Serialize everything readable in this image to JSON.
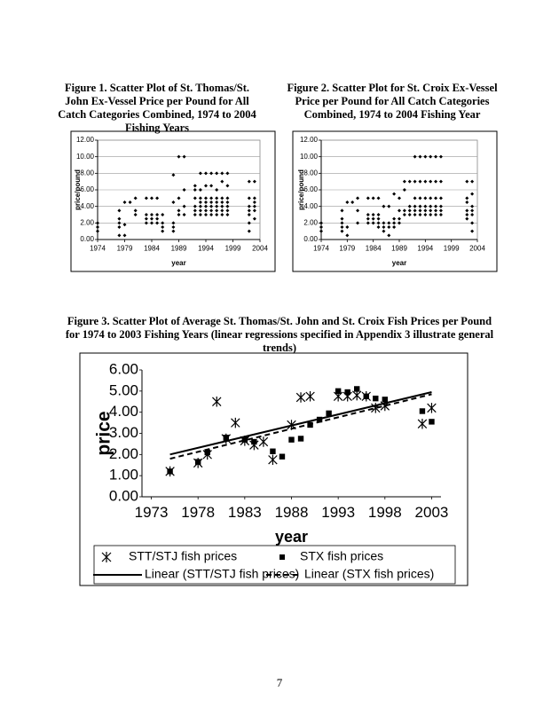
{
  "chart_data": [
    {
      "type": "scatter",
      "title": "Figure 1.  Scatter Plot of St. Thomas/St. John Ex-Vessel Price per Pound for All Catch Categories Combined, 1974 to 2004 Fishing Years",
      "x_label": "year",
      "y_label": "price/pound",
      "xlim": [
        1974,
        2004
      ],
      "xticks": [
        1974,
        1979,
        1984,
        1989,
        1994,
        1999,
        2004
      ],
      "ylim": [
        0,
        12
      ],
      "yticks": [
        {
          "value": 0,
          "label": "0.00"
        },
        {
          "value": 2,
          "label": "2.00"
        },
        {
          "value": 4,
          "label": "4.00"
        },
        {
          "value": 6,
          "label": "6.00"
        },
        {
          "value": 8,
          "label": "8.00"
        },
        {
          "value": 10,
          "label": "10.00"
        },
        {
          "value": 12,
          "label": "12.00"
        }
      ],
      "grid": true,
      "series": [
        {
          "color": "#000000",
          "marker": "diamond",
          "x": [
            1974,
            1974,
            1974,
            1978,
            1978,
            1978,
            1978,
            1978,
            1979,
            1979,
            1979,
            1980,
            1981,
            1981,
            1981,
            1983,
            1983,
            1983,
            1983,
            1984,
            1984,
            1984,
            1984,
            1985,
            1985,
            1985,
            1985,
            1986,
            1986,
            1986,
            1986,
            1988,
            1988,
            1988,
            1988,
            1988,
            1989,
            1989,
            1989,
            1989,
            1990,
            1990,
            1990,
            1990,
            1992,
            1992,
            1992,
            1992,
            1992,
            1992,
            1993,
            1993,
            1993,
            1993,
            1993,
            1993,
            1993,
            1994,
            1994,
            1994,
            1994,
            1994,
            1994,
            1994,
            1995,
            1995,
            1995,
            1995,
            1995,
            1995,
            1995,
            1996,
            1996,
            1996,
            1996,
            1996,
            1996,
            1996,
            1997,
            1997,
            1997,
            1997,
            1997,
            1997,
            1997,
            1998,
            1998,
            1998,
            1998,
            1998,
            1998,
            1998,
            2002,
            2002,
            2002,
            2002,
            2002,
            2002,
            2002,
            2003,
            2003,
            2003,
            2003,
            2003,
            2003
          ],
          "values": [
            1.0,
            1.5,
            2.0,
            0.5,
            1.5,
            2.0,
            2.5,
            3.5,
            0.5,
            1.8,
            4.5,
            4.5,
            3.0,
            3.5,
            5.0,
            2.0,
            2.5,
            3.0,
            5.0,
            2.0,
            2.5,
            3.0,
            5.0,
            2.0,
            2.5,
            3.0,
            5.0,
            1.0,
            1.5,
            2.0,
            3.0,
            1.0,
            1.5,
            2.0,
            4.5,
            7.8,
            3.0,
            3.5,
            5.0,
            10.0,
            3.0,
            4.0,
            6.0,
            10.0,
            3.0,
            3.5,
            4.0,
            5.0,
            6.0,
            6.5,
            3.0,
            3.5,
            4.0,
            4.5,
            5.0,
            6.0,
            8.0,
            3.0,
            3.5,
            4.0,
            4.5,
            5.0,
            6.5,
            8.0,
            3.0,
            3.5,
            4.0,
            4.5,
            5.0,
            6.5,
            8.0,
            3.0,
            3.5,
            4.0,
            4.5,
            5.0,
            6.0,
            8.0,
            3.0,
            3.5,
            4.0,
            4.5,
            5.0,
            7.0,
            8.0,
            3.0,
            3.5,
            4.0,
            4.5,
            5.0,
            6.5,
            8.0,
            1.0,
            2.0,
            3.0,
            3.5,
            4.0,
            5.0,
            7.0,
            2.5,
            3.5,
            4.0,
            4.5,
            5.0,
            7.0
          ]
        }
      ]
    },
    {
      "type": "scatter",
      "title": "Figure 2.  Scatter Plot for St. Croix Ex-Vessel Price per Pound for All Catch Categories Combined, 1974 to 2004 Fishing Year",
      "x_label": "year",
      "y_label": "price/pound",
      "xlim": [
        1974,
        2004
      ],
      "xticks": [
        1974,
        1979,
        1984,
        1989,
        1994,
        1999,
        2004
      ],
      "ylim": [
        0,
        12
      ],
      "yticks": [
        {
          "value": 0,
          "label": "0.00"
        },
        {
          "value": 2,
          "label": "2.00"
        },
        {
          "value": 4,
          "label": "4.00"
        },
        {
          "value": 6,
          "label": "6.00"
        },
        {
          "value": 8,
          "label": "8.00"
        },
        {
          "value": 10,
          "label": "10.00"
        },
        {
          "value": 12,
          "label": "12.00"
        }
      ],
      "grid": true,
      "series": [
        {
          "color": "#000000",
          "marker": "diamond",
          "x": [
            1974,
            1974,
            1974,
            1978,
            1978,
            1978,
            1978,
            1978,
            1979,
            1979,
            1979,
            1980,
            1981,
            1981,
            1981,
            1983,
            1983,
            1983,
            1983,
            1984,
            1984,
            1984,
            1984,
            1985,
            1985,
            1985,
            1985,
            1985,
            1986,
            1986,
            1986,
            1986,
            1987,
            1987,
            1987,
            1987,
            1988,
            1988,
            1988,
            1988,
            1989,
            1989,
            1989,
            1989,
            1990,
            1990,
            1990,
            1990,
            1991,
            1991,
            1991,
            1991,
            1992,
            1992,
            1992,
            1992,
            1992,
            1992,
            1993,
            1993,
            1993,
            1993,
            1993,
            1993,
            1994,
            1994,
            1994,
            1994,
            1994,
            1994,
            1995,
            1995,
            1995,
            1995,
            1995,
            1995,
            1996,
            1996,
            1996,
            1996,
            1996,
            1996,
            1997,
            1997,
            1997,
            1997,
            1997,
            1997,
            2002,
            2002,
            2002,
            2002,
            2002,
            2002,
            2003,
            2003,
            2003,
            2003,
            2003,
            2003,
            2003
          ],
          "values": [
            1.0,
            1.5,
            2.0,
            1.0,
            1.5,
            2.0,
            2.5,
            3.5,
            0.5,
            1.5,
            4.5,
            4.5,
            2.0,
            3.5,
            5.0,
            2.0,
            2.5,
            3.0,
            5.0,
            2.0,
            2.5,
            3.0,
            5.0,
            1.5,
            2.0,
            2.5,
            3.0,
            5.0,
            1.0,
            1.5,
            2.0,
            4.0,
            0.5,
            1.5,
            2.0,
            4.0,
            1.5,
            2.0,
            2.5,
            5.5,
            2.0,
            2.5,
            3.5,
            5.0,
            3.0,
            3.5,
            6.0,
            7.0,
            3.0,
            3.5,
            4.0,
            7.0,
            3.0,
            3.5,
            4.0,
            5.0,
            7.0,
            10.0,
            3.0,
            3.5,
            4.0,
            5.0,
            7.0,
            10.0,
            3.0,
            3.5,
            4.0,
            5.0,
            7.0,
            10.0,
            3.0,
            3.5,
            4.0,
            5.0,
            7.0,
            10.0,
            3.0,
            3.5,
            4.0,
            5.0,
            7.0,
            10.0,
            3.0,
            3.5,
            4.0,
            5.0,
            7.0,
            10.0,
            2.5,
            3.0,
            3.5,
            4.5,
            5.0,
            7.0,
            1.0,
            2.0,
            3.0,
            3.5,
            4.0,
            5.5,
            7.0
          ]
        }
      ]
    },
    {
      "type": "scatter",
      "title": "Figure 3. Scatter Plot of Average St. Thomas/St. John and St. Croix Fish Prices per Pound for 1974 to 2003 Fishing Years (linear regressions specified in Appendix 3 illustrate general trends)",
      "x_label": "year",
      "y_label": "price",
      "xlim": [
        1972,
        2004
      ],
      "xticks": [
        1973,
        1978,
        1983,
        1988,
        1993,
        1998,
        2003
      ],
      "ylim": [
        0,
        6
      ],
      "yticks": [
        {
          "value": 0,
          "label": "0.00"
        },
        {
          "value": 1,
          "label": "1.00"
        },
        {
          "value": 2,
          "label": "2.00"
        },
        {
          "value": 3,
          "label": "3.00"
        },
        {
          "value": 4,
          "label": "4.00"
        },
        {
          "value": 5,
          "label": "5.00"
        },
        {
          "value": 6,
          "label": "6.00"
        }
      ],
      "grid": false,
      "legend": "bottom",
      "series": [
        {
          "name": "STT/STJ fish prices",
          "color": "#000000",
          "marker": "asterisk",
          "x": [
            1975,
            1978,
            1979,
            1980,
            1981,
            1982,
            1983,
            1984,
            1985,
            1986,
            1988,
            1989,
            1990,
            1993,
            1994,
            1995,
            1996,
            1997,
            1998,
            2002,
            2003
          ],
          "values": [
            1.2,
            1.6,
            2.0,
            4.5,
            2.75,
            3.5,
            2.65,
            2.45,
            2.6,
            1.75,
            3.4,
            4.7,
            4.75,
            4.75,
            4.75,
            4.8,
            4.75,
            4.2,
            4.3,
            3.45,
            4.2
          ]
        },
        {
          "name": "STX fish prices",
          "color": "#000000",
          "marker": "square",
          "x": [
            1975,
            1978,
            1979,
            1981,
            1983,
            1984,
            1986,
            1987,
            1988,
            1989,
            1990,
            1991,
            1992,
            1993,
            1994,
            1995,
            1996,
            1997,
            1998,
            2002,
            2003
          ],
          "values": [
            1.2,
            1.65,
            2.1,
            2.8,
            2.7,
            2.6,
            2.15,
            1.9,
            2.7,
            2.75,
            3.4,
            3.65,
            3.95,
            5.0,
            4.95,
            5.1,
            4.75,
            4.65,
            4.6,
            4.05,
            3.55
          ]
        },
        {
          "name": "Linear (STT/STJ fish prices)",
          "color": "#000000",
          "line": "solid",
          "x": [
            1975,
            2003
          ],
          "values": [
            2.0,
            4.95
          ]
        },
        {
          "name": "Linear (STX fish prices)",
          "color": "#000000",
          "line": "dashed",
          "x": [
            1975,
            2003
          ],
          "values": [
            1.8,
            4.85
          ]
        }
      ]
    }
  ],
  "page_number": "7"
}
